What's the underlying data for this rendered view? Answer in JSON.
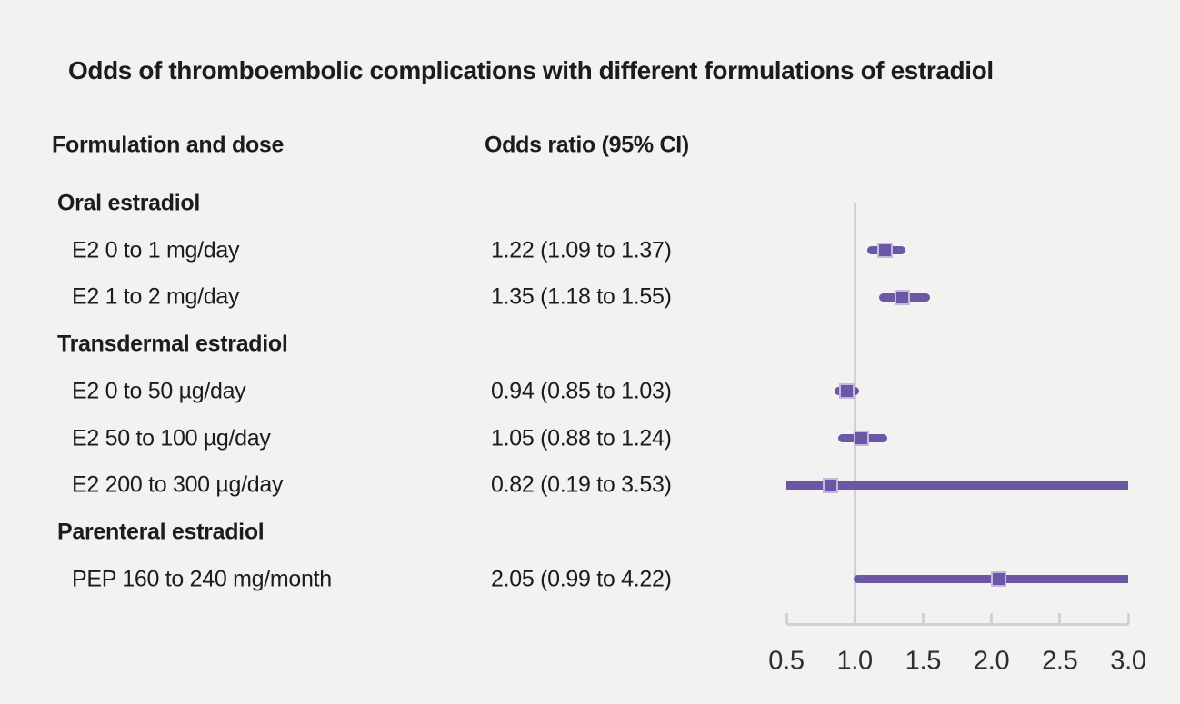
{
  "figure": {
    "title": "Odds of thromboembolic complications with different formulations of estradiol",
    "col_headers": {
      "formulation": "Formulation and dose",
      "odds_ratio": "Odds ratio (95% CI)"
    }
  },
  "colors": {
    "background": "#f2f2f1",
    "text": "#1c1c1c",
    "tick_text": "#2e2e2e",
    "marker_purple": "#6a58a7",
    "marker_border": "#c3b9de",
    "axis_gray": "#cdd3dd"
  },
  "chart_data": {
    "type": "scatter",
    "subtype": "forest-plot",
    "title": "Odds of thromboembolic complications with different formulations of estradiol",
    "xlabel": "",
    "ylabel": "",
    "xlim": [
      0.5,
      3.0
    ],
    "x_ticks": [
      0.5,
      1.0,
      1.5,
      2.0,
      2.5,
      3.0
    ],
    "x_tick_labels": [
      "0.5",
      "1.0",
      "1.5",
      "2.0",
      "2.5",
      "3.0"
    ],
    "reference_line_x": 1.0,
    "grid": false,
    "legend": false,
    "rows": [
      {
        "kind": "group",
        "label": "Oral estradiol"
      },
      {
        "kind": "item",
        "label": "E2 0 to 1 mg/day",
        "or_text": "1.22 (1.09 to 1.37)",
        "est": 1.22,
        "lo": 1.09,
        "hi": 1.37
      },
      {
        "kind": "item",
        "label": "E2 1 to 2 mg/day",
        "or_text": "1.35 (1.18 to 1.55)",
        "est": 1.35,
        "lo": 1.18,
        "hi": 1.55
      },
      {
        "kind": "group",
        "label": "Transdermal estradiol"
      },
      {
        "kind": "item",
        "label": "E2 0 to 50 µg/day",
        "or_text": "0.94 (0.85 to 1.03)",
        "est": 0.94,
        "lo": 0.85,
        "hi": 1.03
      },
      {
        "kind": "item",
        "label": "E2 50 to 100 µg/day",
        "or_text": "1.05 (0.88 to 1.24)",
        "est": 1.05,
        "lo": 0.88,
        "hi": 1.24
      },
      {
        "kind": "item",
        "label": "E2 200 to 300 µg/day",
        "or_text": "0.82 (0.19 to 3.53)",
        "est": 0.82,
        "lo": 0.19,
        "hi": 3.53
      },
      {
        "kind": "group",
        "label": "Parenteral estradiol"
      },
      {
        "kind": "item",
        "label": "PEP 160 to 240 mg/month",
        "or_text": "2.05 (0.99 to 4.22)",
        "est": 2.05,
        "lo": 0.99,
        "hi": 4.22
      }
    ]
  }
}
